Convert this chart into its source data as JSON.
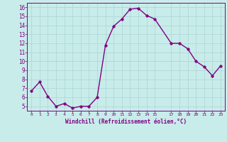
{
  "x": [
    0,
    1,
    2,
    3,
    4,
    5,
    6,
    7,
    8,
    9,
    10,
    11,
    12,
    13,
    14,
    15,
    17,
    18,
    19,
    20,
    21,
    22,
    23
  ],
  "y": [
    6.7,
    7.7,
    6.1,
    5.0,
    5.3,
    4.8,
    5.0,
    5.0,
    6.0,
    11.8,
    13.9,
    14.7,
    15.8,
    15.9,
    15.1,
    14.7,
    12.0,
    12.0,
    11.4,
    10.0,
    9.4,
    8.4,
    9.5
  ],
  "line_color": "#800080",
  "marker_color": "#800080",
  "bg_color": "#c8ecea",
  "grid_color": "#b0d8d8",
  "xlabel": "Windchill (Refroidissement éolien,°C)",
  "xlabel_color": "#800080",
  "ylim": [
    4.5,
    16.5
  ],
  "xlim": [
    -0.5,
    23.5
  ],
  "yticks": [
    5,
    6,
    7,
    8,
    9,
    10,
    11,
    12,
    13,
    14,
    15,
    16
  ],
  "xticks": [
    0,
    1,
    2,
    3,
    4,
    5,
    6,
    7,
    8,
    9,
    10,
    11,
    12,
    13,
    14,
    15,
    17,
    18,
    19,
    20,
    21,
    22,
    23
  ],
  "tick_color": "#800080",
  "line_width": 1.0,
  "marker_size": 2.5
}
